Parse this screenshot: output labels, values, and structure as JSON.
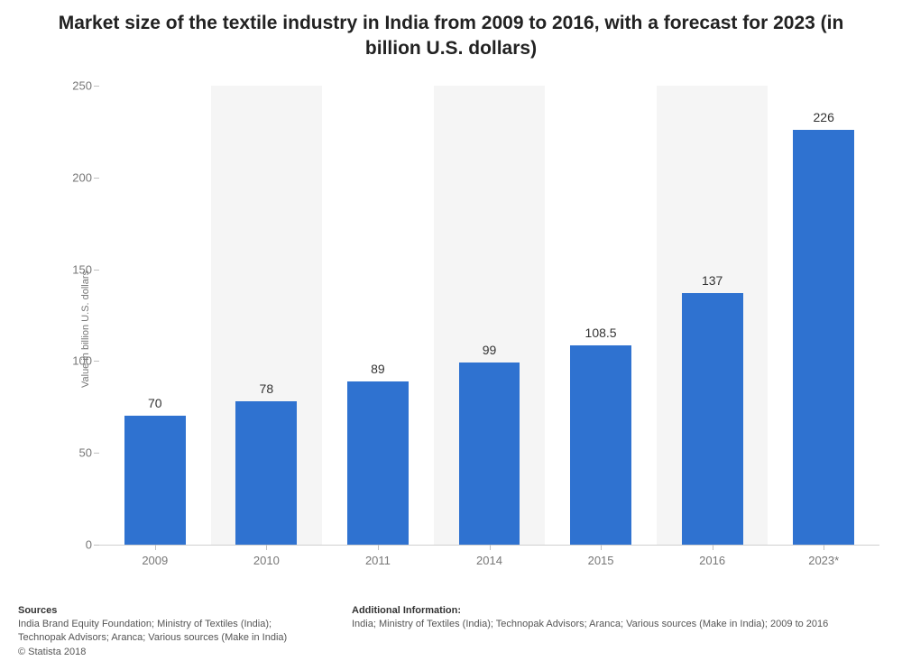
{
  "title": "Market size of the textile industry in India from 2009 to 2016, with a forecast for 2023 (in billion U.S. dollars)",
  "title_fontsize": 21,
  "chart": {
    "type": "bar",
    "categories": [
      "2009",
      "2010",
      "2011",
      "2014",
      "2015",
      "2016",
      "2023*"
    ],
    "values": [
      70,
      78,
      89,
      99,
      108.5,
      137,
      226
    ],
    "value_labels": [
      "70",
      "78",
      "89",
      "99",
      "108.5",
      "137",
      "226"
    ],
    "bar_color": "#2f72d0",
    "alt_band_color": "#f5f5f5",
    "background_color": "#ffffff",
    "ylabel": "Value in billion U.S. dollars",
    "ylim": [
      0,
      250
    ],
    "yticks": [
      0,
      50,
      100,
      150,
      200,
      250
    ],
    "bar_width_ratio": 0.55,
    "tick_fontsize": 13,
    "value_label_fontsize": 14,
    "ylabel_fontsize": 11
  },
  "footer": {
    "sources_heading": "Sources",
    "sources_body": "India Brand Equity Foundation; Ministry of Textiles (India); Technopak Advisors; Aranca; Various sources (Make in India)",
    "copyright": "© Statista 2018",
    "info_heading": "Additional Information:",
    "info_body": "India; Ministry of Textiles (India); Technopak Advisors; Aranca; Various sources (Make in India); 2009 to 2016",
    "fontsize": 11
  }
}
